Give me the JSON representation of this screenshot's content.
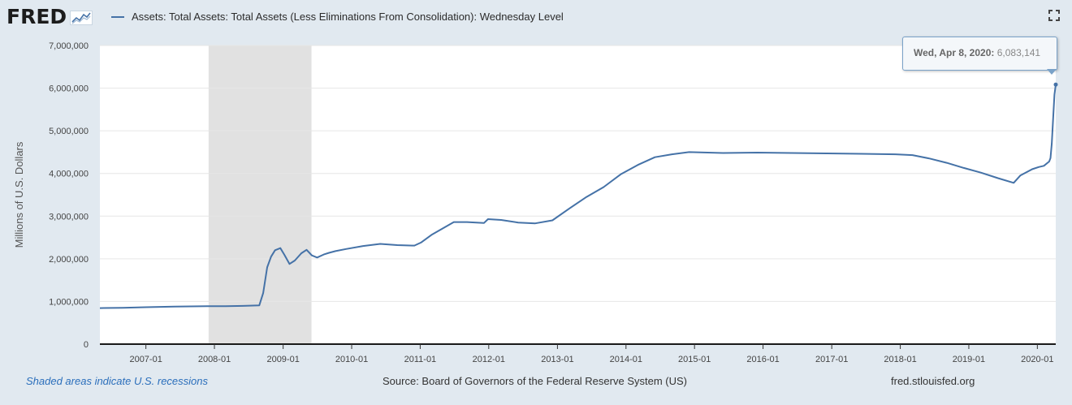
{
  "brand": {
    "logo_text": "FRED"
  },
  "series": {
    "title": "Assets: Total Assets: Total Assets (Less Eliminations From Consolidation): Wednesday Level",
    "color": "#4572a7"
  },
  "icons": {
    "logo": "fred-graph-logo-icon",
    "fullscreen": "fullscreen-icon"
  },
  "tooltip": {
    "date_label": "Wed, Apr 8, 2020:",
    "value_label": "6,083,141"
  },
  "footer": {
    "recession_note": "Shaded areas indicate U.S. recessions",
    "source": "Source: Board of Governors of the Federal Reserve System (US)",
    "site": "fred.stlouisfed.org"
  },
  "chart_data": {
    "type": "line",
    "ylabel": "Millions of U.S. Dollars",
    "xlabel": "",
    "x_range": [
      "2006-05-01",
      "2020-04-08"
    ],
    "ylim": [
      0,
      7000000
    ],
    "y_ticks": [
      0,
      1000000,
      2000000,
      3000000,
      4000000,
      5000000,
      6000000,
      7000000
    ],
    "y_tick_labels": [
      "0",
      "1,000,000",
      "2,000,000",
      "3,000,000",
      "4,000,000",
      "5,000,000",
      "6,000,000",
      "7,000,000"
    ],
    "x_ticks": [
      "2007-01-01",
      "2008-01-01",
      "2009-01-01",
      "2010-01-01",
      "2011-01-01",
      "2012-01-01",
      "2013-01-01",
      "2014-01-01",
      "2015-01-01",
      "2016-01-01",
      "2017-01-01",
      "2018-01-01",
      "2019-01-01",
      "2020-01-01"
    ],
    "x_tick_labels": [
      "2007-01",
      "2008-01",
      "2009-01",
      "2010-01",
      "2011-01",
      "2012-01",
      "2013-01",
      "2014-01",
      "2015-01",
      "2016-01",
      "2017-01",
      "2018-01",
      "2019-01",
      "2020-01"
    ],
    "grid": true,
    "recessions": [
      {
        "start": "2007-12-01",
        "end": "2009-06-01"
      }
    ],
    "series": [
      {
        "name": "Assets: Total Assets: Total Assets (Less Eliminations From Consolidation): Wednesday Level",
        "x": [
          "2006-05-01",
          "2006-09-01",
          "2007-01-01",
          "2007-06-01",
          "2007-12-01",
          "2008-03-01",
          "2008-06-01",
          "2008-08-27",
          "2008-09-17",
          "2008-10-08",
          "2008-10-29",
          "2008-11-19",
          "2008-12-17",
          "2009-01-07",
          "2009-02-04",
          "2009-03-04",
          "2009-04-08",
          "2009-05-06",
          "2009-06-03",
          "2009-07-01",
          "2009-08-05",
          "2009-09-02",
          "2009-10-07",
          "2009-12-02",
          "2010-03-03",
          "2010-06-02",
          "2010-09-01",
          "2010-12-01",
          "2011-01-05",
          "2011-03-02",
          "2011-06-29",
          "2011-09-07",
          "2011-12-07",
          "2011-12-28",
          "2012-03-07",
          "2012-06-06",
          "2012-09-05",
          "2012-12-05",
          "2013-03-06",
          "2013-06-05",
          "2013-09-04",
          "2013-12-04",
          "2014-03-05",
          "2014-06-04",
          "2014-09-03",
          "2014-12-03",
          "2015-06-03",
          "2015-12-02",
          "2016-06-01",
          "2016-12-07",
          "2017-06-07",
          "2017-12-06",
          "2018-03-07",
          "2018-06-06",
          "2018-09-05",
          "2018-12-05",
          "2019-03-06",
          "2019-06-05",
          "2019-08-28",
          "2019-10-02",
          "2019-12-04",
          "2020-01-08",
          "2020-02-05",
          "2020-03-04",
          "2020-03-11",
          "2020-03-18",
          "2020-03-25",
          "2020-04-01",
          "2020-04-08"
        ],
        "y": [
          845000,
          852000,
          865000,
          880000,
          890000,
          888000,
          895000,
          910000,
          1200000,
          1800000,
          2050000,
          2200000,
          2250000,
          2100000,
          1880000,
          1960000,
          2130000,
          2210000,
          2080000,
          2030000,
          2100000,
          2140000,
          2180000,
          2230000,
          2300000,
          2350000,
          2320000,
          2310000,
          2380000,
          2560000,
          2860000,
          2860000,
          2840000,
          2930000,
          2910000,
          2850000,
          2830000,
          2900000,
          3180000,
          3450000,
          3680000,
          3980000,
          4200000,
          4380000,
          4450000,
          4500000,
          4480000,
          4490000,
          4480000,
          4470000,
          4460000,
          4450000,
          4430000,
          4350000,
          4250000,
          4130000,
          4020000,
          3890000,
          3780000,
          3950000,
          4100000,
          4150000,
          4180000,
          4280000,
          4360000,
          4700000,
          5300000,
          5850000,
          6083141
        ]
      }
    ]
  }
}
